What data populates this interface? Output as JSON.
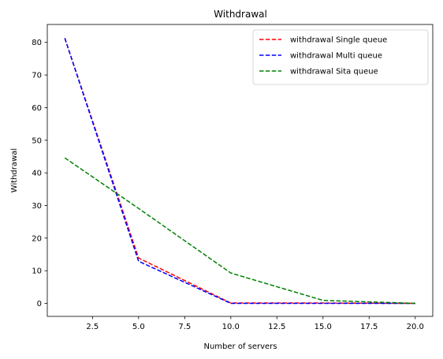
{
  "chart_data": {
    "type": "line",
    "title": "Withdrawal",
    "xlabel": "Number of servers",
    "ylabel": "Withdrawal",
    "x": [
      1,
      5,
      10,
      15,
      20
    ],
    "xlim": [
      0.05,
      20.95
    ],
    "ylim": [
      -4,
      85.5
    ],
    "xticks": [
      "2.5",
      "5.0",
      "7.5",
      "10.0",
      "12.5",
      "15.0",
      "17.5",
      "20.0"
    ],
    "yticks": [
      "0",
      "10",
      "20",
      "30",
      "40",
      "50",
      "60",
      "70",
      "80"
    ],
    "grid": false,
    "legend_position": "top-right",
    "series": [
      {
        "name": "withdrawal Single queue",
        "color": "#ff0000",
        "linestyle": "dashed",
        "values": [
          81.3,
          13.9,
          0.1,
          0.1,
          0.0
        ]
      },
      {
        "name": "withdrawal Multi queue",
        "color": "#0000ff",
        "linestyle": "dashed",
        "values": [
          81.3,
          12.9,
          0.0,
          0.0,
          0.0
        ]
      },
      {
        "name": "withdrawal Sita queue",
        "color": "#008000",
        "linestyle": "dashed",
        "values": [
          44.6,
          29.1,
          9.3,
          0.9,
          0.0
        ]
      }
    ]
  }
}
